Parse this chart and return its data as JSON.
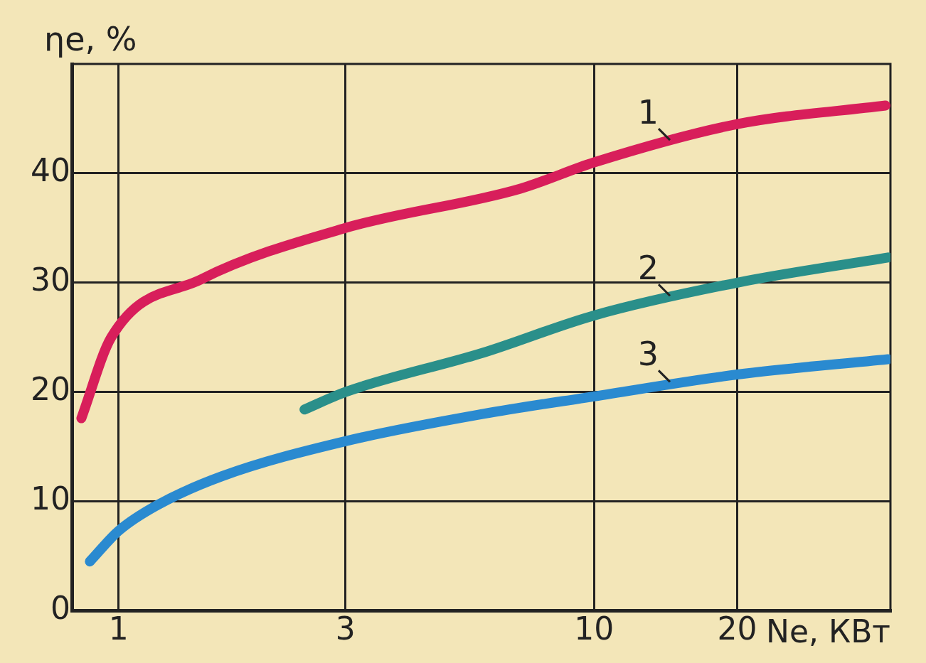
{
  "chart_data": {
    "type": "line",
    "xlabel": "Ne, КВт",
    "ylabel": "ηe, %",
    "log": "x",
    "xlim": [
      0.8,
      42
    ],
    "xticks": [
      1,
      3,
      10,
      20
    ],
    "ylim": [
      0,
      50
    ],
    "yticks": [
      0,
      10,
      20,
      30,
      40
    ],
    "grid": true,
    "legend": false,
    "marker": "none",
    "line_style": "solid",
    "series": [
      {
        "name": "1",
        "color": "#d81e5b",
        "x": [
          0.835,
          0.965,
          1.49,
          3,
          7,
          10,
          20,
          41
        ],
        "values": [
          17.6,
          25,
          30.3,
          35,
          38.6,
          41,
          44.5,
          46.2
        ]
      },
      {
        "name": "2",
        "color": "#2a8f8a",
        "x": [
          2.46,
          3,
          5.85,
          10,
          20,
          41.5
        ],
        "values": [
          18.4,
          20,
          23.6,
          27,
          30,
          32.3
        ]
      },
      {
        "name": "3",
        "color": "#2a8ad0",
        "x": [
          0.87,
          1,
          1.2,
          1.65,
          3,
          5.85,
          10,
          20,
          41.5
        ],
        "values": [
          4.5,
          7.3,
          9.6,
          12.3,
          15.5,
          18,
          19.6,
          21.6,
          23
        ]
      }
    ]
  }
}
